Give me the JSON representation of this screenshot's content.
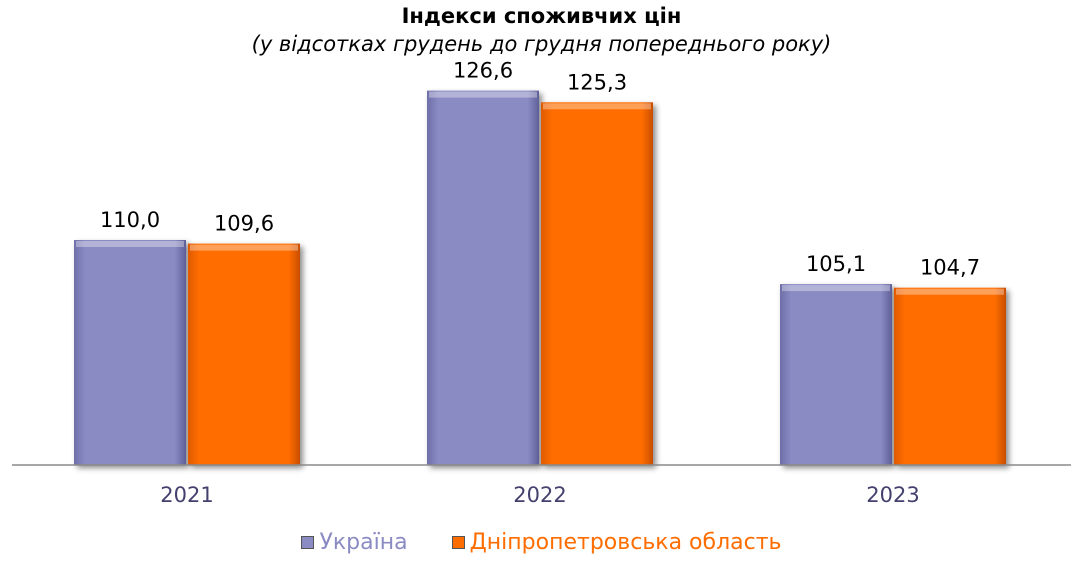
{
  "chart_data": {
    "type": "bar",
    "title": "Індекси споживчих цін",
    "subtitle": "(у відсотках грудень до грудня попереднього року)",
    "categories": [
      "2021",
      "2022",
      "2023"
    ],
    "series": [
      {
        "name": "Україна",
        "values": [
          110.0,
          126.6,
          105.1
        ],
        "labels": [
          "110,0",
          "126,6",
          "105,1"
        ],
        "color": "#8b8bc4"
      },
      {
        "name": "Дніпропетровська область",
        "values": [
          109.6,
          125.3,
          104.7
        ],
        "labels": [
          "109,6",
          "125,3",
          "104,7"
        ],
        "color": "#ff6d00"
      }
    ],
    "ylim": [
      85,
      130
    ],
    "grid": false,
    "legend": "bottom-center",
    "tick_color": "#44406e"
  }
}
